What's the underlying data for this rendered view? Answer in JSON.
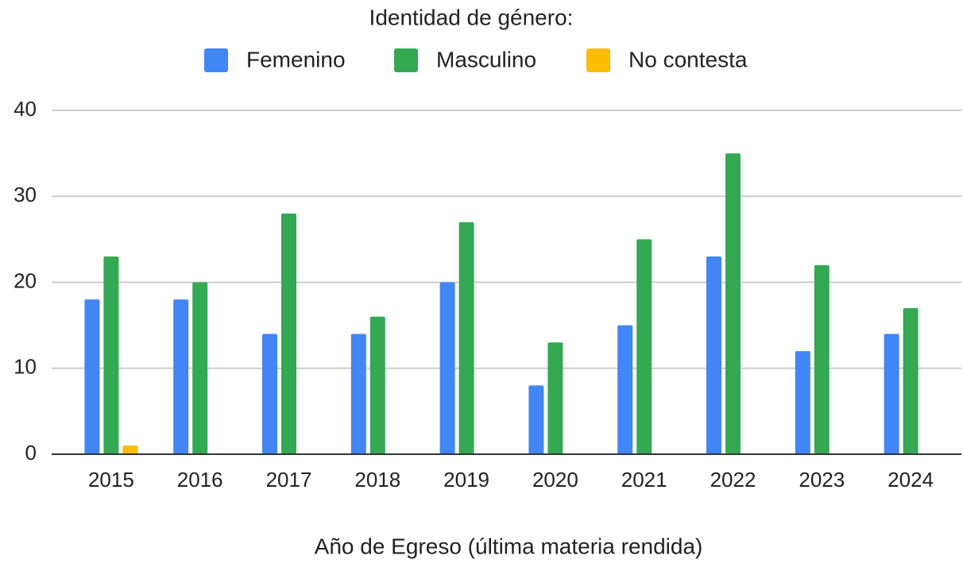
{
  "chart_data": {
    "type": "bar",
    "title": "Identidad de género:",
    "x_label": "Año de Egreso (última materia rendida)",
    "categories": [
      "2015",
      "2016",
      "2017",
      "2018",
      "2019",
      "2020",
      "2021",
      "2022",
      "2023",
      "2024"
    ],
    "series": [
      {
        "name": "Femenino",
        "color": "#4285f4",
        "values": [
          18,
          18,
          14,
          14,
          20,
          8,
          15,
          23,
          12,
          14
        ]
      },
      {
        "name": "Masculino",
        "color": "#34a853",
        "values": [
          23,
          20,
          28,
          16,
          27,
          13,
          25,
          35,
          22,
          17
        ]
      },
      {
        "name": "No contesta",
        "color": "#fbbc04",
        "values": [
          1,
          0,
          0,
          0,
          0,
          0,
          0,
          0,
          0,
          0
        ]
      }
    ],
    "ylim": [
      0,
      40
    ],
    "yticks": [
      0,
      10,
      20,
      30,
      40
    ],
    "grid": true,
    "legend": "top"
  }
}
